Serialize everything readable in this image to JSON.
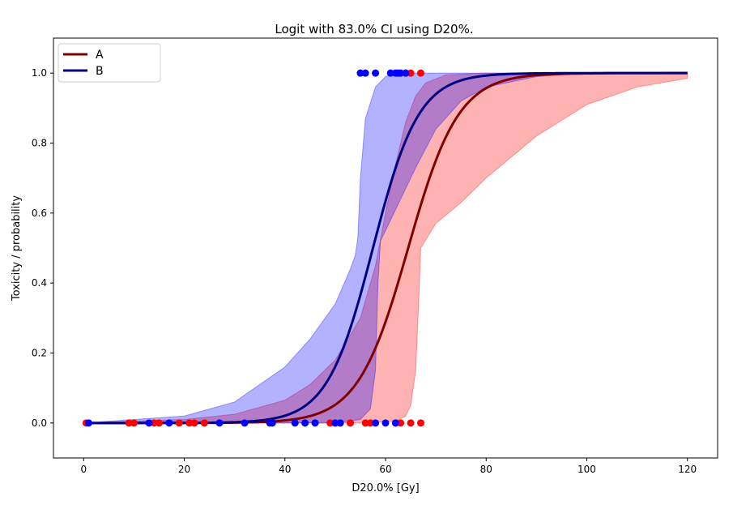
{
  "chart_data": {
    "type": "line",
    "title": "Logit with 83.0% CI using D20%.",
    "xlabel": "D20.0% [Gy]",
    "ylabel": "Toxicity / probability",
    "xlim": [
      -6,
      126
    ],
    "ylim": [
      -0.1,
      1.1
    ],
    "xticks": [
      0,
      20,
      40,
      60,
      80,
      100,
      120
    ],
    "yticks": [
      0.0,
      0.2,
      0.4,
      0.6,
      0.8,
      1.0
    ],
    "xtick_labels": [
      "0",
      "20",
      "40",
      "60",
      "80",
      "100",
      "120"
    ],
    "ytick_labels": [
      "0.0",
      "0.2",
      "0.4",
      "0.6",
      "0.8",
      "1.0"
    ],
    "grid": false,
    "legend_position": "top-left",
    "series": [
      {
        "name": "A",
        "color": "#800000",
        "band_color": "#ff0000",
        "curve": {
          "x50": 64.5,
          "k": 0.2,
          "xmin": 0,
          "xmax": 120
        },
        "ci_upper": [
          [
            0,
            0
          ],
          [
            20,
            0.01
          ],
          [
            30,
            0.025
          ],
          [
            40,
            0.065
          ],
          [
            45,
            0.11
          ],
          [
            50,
            0.18
          ],
          [
            55,
            0.3
          ],
          [
            58,
            0.45
          ],
          [
            60,
            0.6
          ],
          [
            62,
            0.74
          ],
          [
            64,
            0.86
          ],
          [
            66,
            0.935
          ],
          [
            68,
            0.972
          ],
          [
            72,
            0.995
          ],
          [
            80,
            1.0
          ],
          [
            120,
            1.0
          ]
        ],
        "ci_lower": [
          [
            0,
            0
          ],
          [
            40,
            0
          ],
          [
            55,
            0
          ],
          [
            62,
            0.005
          ],
          [
            64,
            0.02
          ],
          [
            65,
            0.05
          ],
          [
            66,
            0.15
          ],
          [
            66.6,
            0.35
          ],
          [
            67,
            0.5
          ],
          [
            70,
            0.57
          ],
          [
            75,
            0.63
          ],
          [
            80,
            0.7
          ],
          [
            90,
            0.82
          ],
          [
            100,
            0.91
          ],
          [
            110,
            0.96
          ],
          [
            120,
            0.985
          ]
        ],
        "points": [
          [
            0.5,
            0
          ],
          [
            9,
            0
          ],
          [
            10,
            0
          ],
          [
            14,
            0
          ],
          [
            15,
            0
          ],
          [
            19,
            0
          ],
          [
            21,
            0
          ],
          [
            22,
            0
          ],
          [
            24,
            0
          ],
          [
            49,
            0
          ],
          [
            50,
            0
          ],
          [
            51,
            0
          ],
          [
            53,
            0
          ],
          [
            56,
            0
          ],
          [
            57,
            0
          ],
          [
            62,
            0
          ],
          [
            63,
            0
          ],
          [
            65,
            0
          ],
          [
            67,
            0
          ],
          [
            64,
            1
          ],
          [
            65,
            1
          ],
          [
            67,
            1
          ]
        ]
      },
      {
        "name": "B",
        "color": "#000080",
        "band_color": "#0000ff",
        "curve": {
          "x50": 57.5,
          "k": 0.22,
          "xmin": 0,
          "xmax": 120
        },
        "ci_upper": [
          [
            0,
            0
          ],
          [
            20,
            0.02
          ],
          [
            30,
            0.06
          ],
          [
            40,
            0.16
          ],
          [
            45,
            0.24
          ],
          [
            50,
            0.34
          ],
          [
            53,
            0.44
          ],
          [
            54,
            0.48
          ],
          [
            54.5,
            0.53
          ],
          [
            55,
            0.7
          ],
          [
            56,
            0.87
          ],
          [
            58,
            0.96
          ],
          [
            60,
            0.99
          ],
          [
            62,
            1.0
          ],
          [
            120,
            1.0
          ]
        ],
        "ci_lower": [
          [
            0,
            0
          ],
          [
            40,
            0
          ],
          [
            50,
            0
          ],
          [
            55,
            0.01
          ],
          [
            57,
            0.04
          ],
          [
            58,
            0.15
          ],
          [
            58.5,
            0.4
          ],
          [
            59,
            0.52
          ],
          [
            60,
            0.55
          ],
          [
            62,
            0.61
          ],
          [
            66,
            0.73
          ],
          [
            70,
            0.84
          ],
          [
            75,
            0.92
          ],
          [
            80,
            0.96
          ],
          [
            90,
            0.99
          ],
          [
            100,
            1.0
          ],
          [
            120,
            1.0
          ]
        ],
        "points": [
          [
            1,
            0
          ],
          [
            13,
            0
          ],
          [
            17,
            0
          ],
          [
            27,
            0
          ],
          [
            32,
            0
          ],
          [
            37,
            0
          ],
          [
            37.5,
            0
          ],
          [
            42,
            0
          ],
          [
            44,
            0
          ],
          [
            46,
            0
          ],
          [
            50,
            0
          ],
          [
            51,
            0
          ],
          [
            58,
            0
          ],
          [
            60,
            0
          ],
          [
            62,
            0
          ],
          [
            55,
            1
          ],
          [
            56,
            1
          ],
          [
            58,
            1
          ],
          [
            61,
            1
          ],
          [
            62,
            1
          ],
          [
            62.5,
            1
          ],
          [
            63,
            1
          ],
          [
            64,
            1
          ]
        ]
      }
    ]
  }
}
